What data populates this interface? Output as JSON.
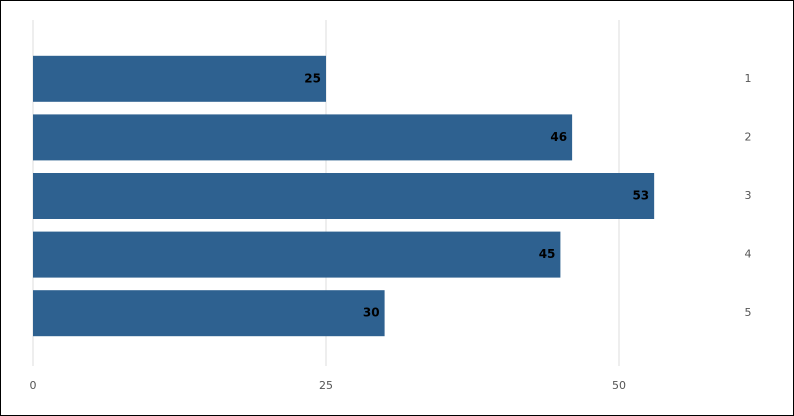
{
  "chart_data": {
    "type": "bar",
    "orientation": "horizontal",
    "categories": [
      "1",
      "2",
      "3",
      "4",
      "5"
    ],
    "values": [
      25,
      46,
      53,
      45,
      30
    ],
    "color": "#2e6190",
    "xlim": [
      0,
      60
    ],
    "xticks": [
      0,
      25,
      50
    ],
    "grid": true
  }
}
